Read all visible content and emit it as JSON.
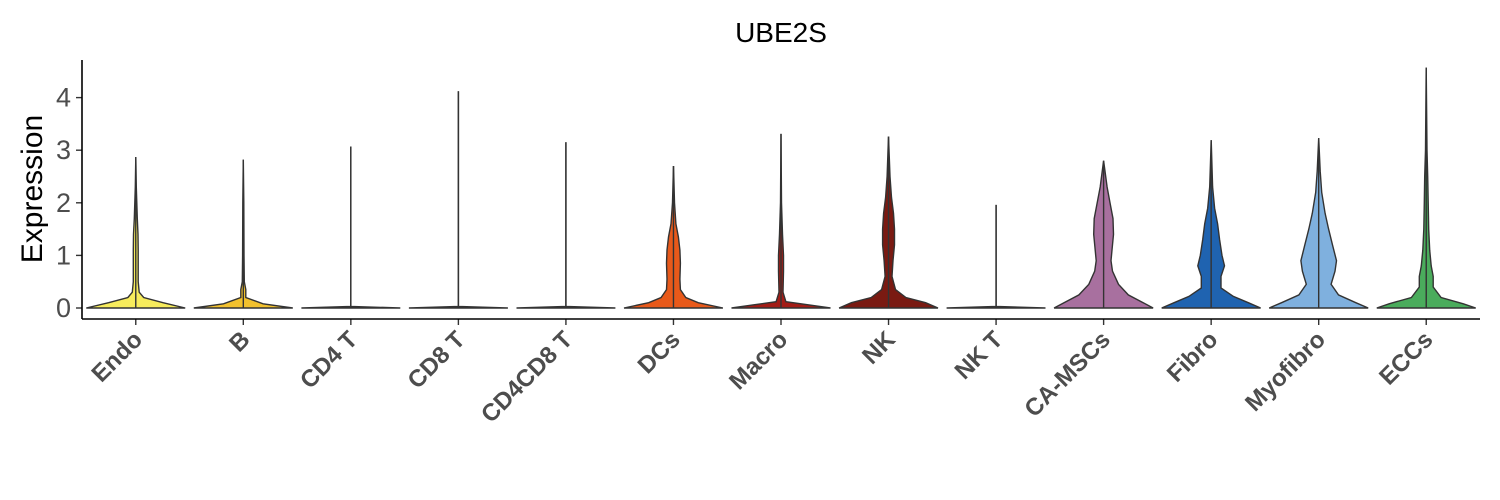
{
  "chart_data": {
    "type": "violin",
    "title": "UBE2S",
    "ylabel": "Expression",
    "xlabel": "",
    "ylim": [
      -0.2,
      4.8
    ],
    "yticks": [
      0,
      1,
      2,
      3,
      4
    ],
    "grid": false,
    "legend": "none",
    "categories": [
      "Endo",
      "B",
      "CD4 T",
      "CD8 T",
      "CD4CD8 T",
      "DCs",
      "Macro",
      "NK",
      "NK T",
      "CA-MSCs",
      "Fibro",
      "Myofibro",
      "ECCs"
    ],
    "colors": [
      "#f7ec5c",
      "#f2c12e",
      "#e8d77a",
      "#f0a35e",
      "#c9b280",
      "#e8591a",
      "#a31c16",
      "#7a1a12",
      "#d7c3b5",
      "#a8709f",
      "#1f63b0",
      "#7fb0de",
      "#4aac5c"
    ],
    "series": [
      {
        "category": "Endo",
        "max": 2.87,
        "density": [
          [
            0,
            1
          ],
          [
            0.1,
            0.55
          ],
          [
            0.2,
            0.16
          ],
          [
            0.3,
            0.07
          ],
          [
            0.5,
            0.05
          ],
          [
            0.8,
            0.05
          ],
          [
            1.1,
            0.05
          ],
          [
            1.4,
            0.045
          ],
          [
            1.7,
            0.03
          ],
          [
            2.0,
            0.02
          ],
          [
            2.3,
            0.01
          ],
          [
            2.87,
            0
          ]
        ]
      },
      {
        "category": "B",
        "max": 2.82,
        "density": [
          [
            0,
            1
          ],
          [
            0.08,
            0.4
          ],
          [
            0.2,
            0.05
          ],
          [
            0.35,
            0.05
          ],
          [
            0.5,
            0.02
          ],
          [
            1.0,
            0.015
          ],
          [
            2.0,
            0.01
          ],
          [
            2.82,
            0
          ]
        ]
      },
      {
        "category": "CD4 T",
        "max": 3.07,
        "density": [
          [
            0,
            1
          ],
          [
            0.03,
            0
          ],
          [
            3.07,
            0
          ]
        ]
      },
      {
        "category": "CD8 T",
        "max": 4.12,
        "density": [
          [
            0,
            1
          ],
          [
            0.03,
            0
          ],
          [
            4.12,
            0
          ]
        ]
      },
      {
        "category": "CD4CD8 T",
        "max": 3.15,
        "density": [
          [
            0,
            1
          ],
          [
            0.03,
            0
          ],
          [
            3.15,
            0
          ]
        ]
      },
      {
        "category": "DCs",
        "max": 2.7,
        "density": [
          [
            0,
            1
          ],
          [
            0.1,
            0.5
          ],
          [
            0.2,
            0.25
          ],
          [
            0.35,
            0.14
          ],
          [
            0.55,
            0.13
          ],
          [
            0.85,
            0.14
          ],
          [
            1.1,
            0.13
          ],
          [
            1.35,
            0.1
          ],
          [
            1.6,
            0.05
          ],
          [
            2.0,
            0.02
          ],
          [
            2.7,
            0
          ]
        ]
      },
      {
        "category": "Macro",
        "max": 3.31,
        "density": [
          [
            0,
            1
          ],
          [
            0.06,
            0.55
          ],
          [
            0.12,
            0.1
          ],
          [
            0.3,
            0.04
          ],
          [
            0.7,
            0.05
          ],
          [
            1.0,
            0.05
          ],
          [
            1.4,
            0.03
          ],
          [
            2.0,
            0.01
          ],
          [
            3.31,
            0
          ]
        ]
      },
      {
        "category": "NK",
        "max": 3.26,
        "density": [
          [
            0,
            1
          ],
          [
            0.1,
            0.75
          ],
          [
            0.2,
            0.35
          ],
          [
            0.35,
            0.14
          ],
          [
            0.6,
            0.07
          ],
          [
            0.9,
            0.09
          ],
          [
            1.2,
            0.12
          ],
          [
            1.5,
            0.12
          ],
          [
            1.8,
            0.1
          ],
          [
            2.1,
            0.06
          ],
          [
            2.5,
            0.03
          ],
          [
            3.26,
            0
          ]
        ]
      },
      {
        "category": "NK T",
        "max": 1.96,
        "density": [
          [
            0,
            1
          ],
          [
            0.03,
            0
          ],
          [
            1.96,
            0
          ]
        ]
      },
      {
        "category": "CA-MSCs",
        "max": 2.8,
        "density": [
          [
            0,
            1
          ],
          [
            0.1,
            0.8
          ],
          [
            0.25,
            0.5
          ],
          [
            0.45,
            0.3
          ],
          [
            0.7,
            0.18
          ],
          [
            0.9,
            0.15
          ],
          [
            1.1,
            0.17
          ],
          [
            1.4,
            0.2
          ],
          [
            1.7,
            0.19
          ],
          [
            2.0,
            0.13
          ],
          [
            2.3,
            0.07
          ],
          [
            2.8,
            0
          ]
        ]
      },
      {
        "category": "Fibro",
        "max": 3.19,
        "density": [
          [
            0,
            1
          ],
          [
            0.1,
            0.75
          ],
          [
            0.22,
            0.45
          ],
          [
            0.38,
            0.2
          ],
          [
            0.6,
            0.2
          ],
          [
            0.8,
            0.27
          ],
          [
            1.0,
            0.22
          ],
          [
            1.3,
            0.17
          ],
          [
            1.6,
            0.13
          ],
          [
            1.9,
            0.07
          ],
          [
            2.3,
            0.03
          ],
          [
            3.19,
            0
          ]
        ]
      },
      {
        "category": "Myofibro",
        "max": 3.23,
        "density": [
          [
            0,
            1
          ],
          [
            0.1,
            0.75
          ],
          [
            0.25,
            0.4
          ],
          [
            0.45,
            0.25
          ],
          [
            0.7,
            0.33
          ],
          [
            0.9,
            0.36
          ],
          [
            1.2,
            0.28
          ],
          [
            1.5,
            0.2
          ],
          [
            1.8,
            0.13
          ],
          [
            2.2,
            0.06
          ],
          [
            2.6,
            0.03
          ],
          [
            3.23,
            0
          ]
        ]
      },
      {
        "category": "ECCs",
        "max": 4.57,
        "density": [
          [
            0,
            1
          ],
          [
            0.08,
            0.75
          ],
          [
            0.2,
            0.3
          ],
          [
            0.4,
            0.14
          ],
          [
            0.6,
            0.14
          ],
          [
            0.8,
            0.1
          ],
          [
            1.1,
            0.07
          ],
          [
            1.5,
            0.05
          ],
          [
            2.0,
            0.04
          ],
          [
            2.5,
            0.03
          ],
          [
            3.0,
            0.015
          ],
          [
            4.57,
            0
          ]
        ]
      }
    ]
  }
}
